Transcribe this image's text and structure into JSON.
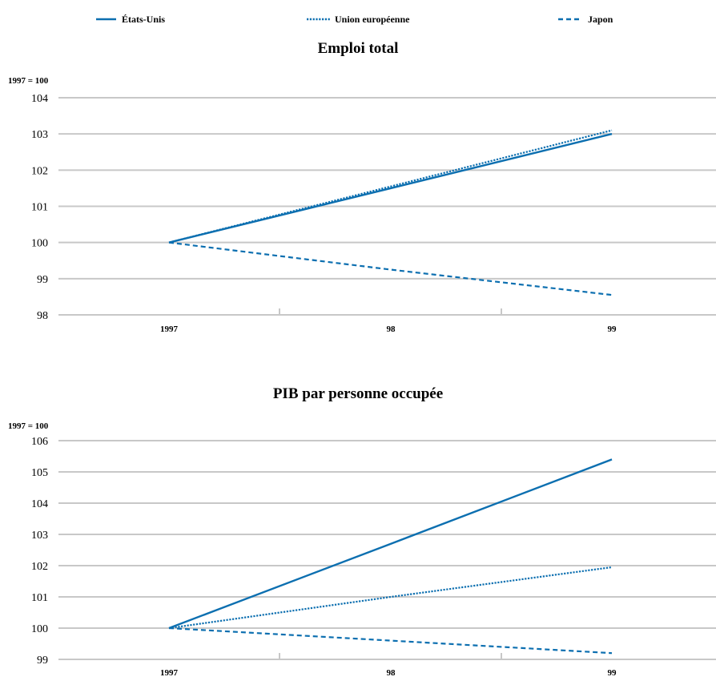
{
  "legend": [
    {
      "label": "États-Unis",
      "style": "solid"
    },
    {
      "label": "Union européenne",
      "style": "dotted"
    },
    {
      "label": "Japon",
      "style": "dashed"
    }
  ],
  "colors": {
    "series": "#0c6fb0",
    "grid": "#c8c8c8"
  },
  "chart_data": [
    {
      "type": "line",
      "title": "Emploi total",
      "ylabel": "1997 = 100",
      "categories": [
        "1997",
        "98",
        "99"
      ],
      "ylim": [
        98,
        104
      ],
      "yticks": [
        98,
        99,
        100,
        101,
        102,
        103,
        104
      ],
      "grid": true,
      "series": [
        {
          "name": "États-Unis",
          "style": "solid",
          "values": [
            100,
            101.5,
            103.0
          ]
        },
        {
          "name": "Union européenne",
          "style": "dotted",
          "values": [
            100,
            101.55,
            103.1
          ]
        },
        {
          "name": "Japon",
          "style": "dashed",
          "values": [
            100,
            99.25,
            98.55
          ]
        }
      ]
    },
    {
      "type": "line",
      "title": "PIB par personne occupée",
      "ylabel": "1997 = 100",
      "categories": [
        "1997",
        "98",
        "99"
      ],
      "ylim": [
        99,
        106
      ],
      "yticks": [
        99,
        100,
        101,
        102,
        103,
        104,
        105,
        106
      ],
      "grid": true,
      "series": [
        {
          "name": "États-Unis",
          "style": "solid",
          "values": [
            100,
            102.7,
            105.4
          ]
        },
        {
          "name": "Union européenne",
          "style": "dotted",
          "values": [
            100,
            101.0,
            101.95
          ]
        },
        {
          "name": "Japon",
          "style": "dashed",
          "values": [
            100,
            99.6,
            99.2
          ]
        }
      ]
    }
  ]
}
